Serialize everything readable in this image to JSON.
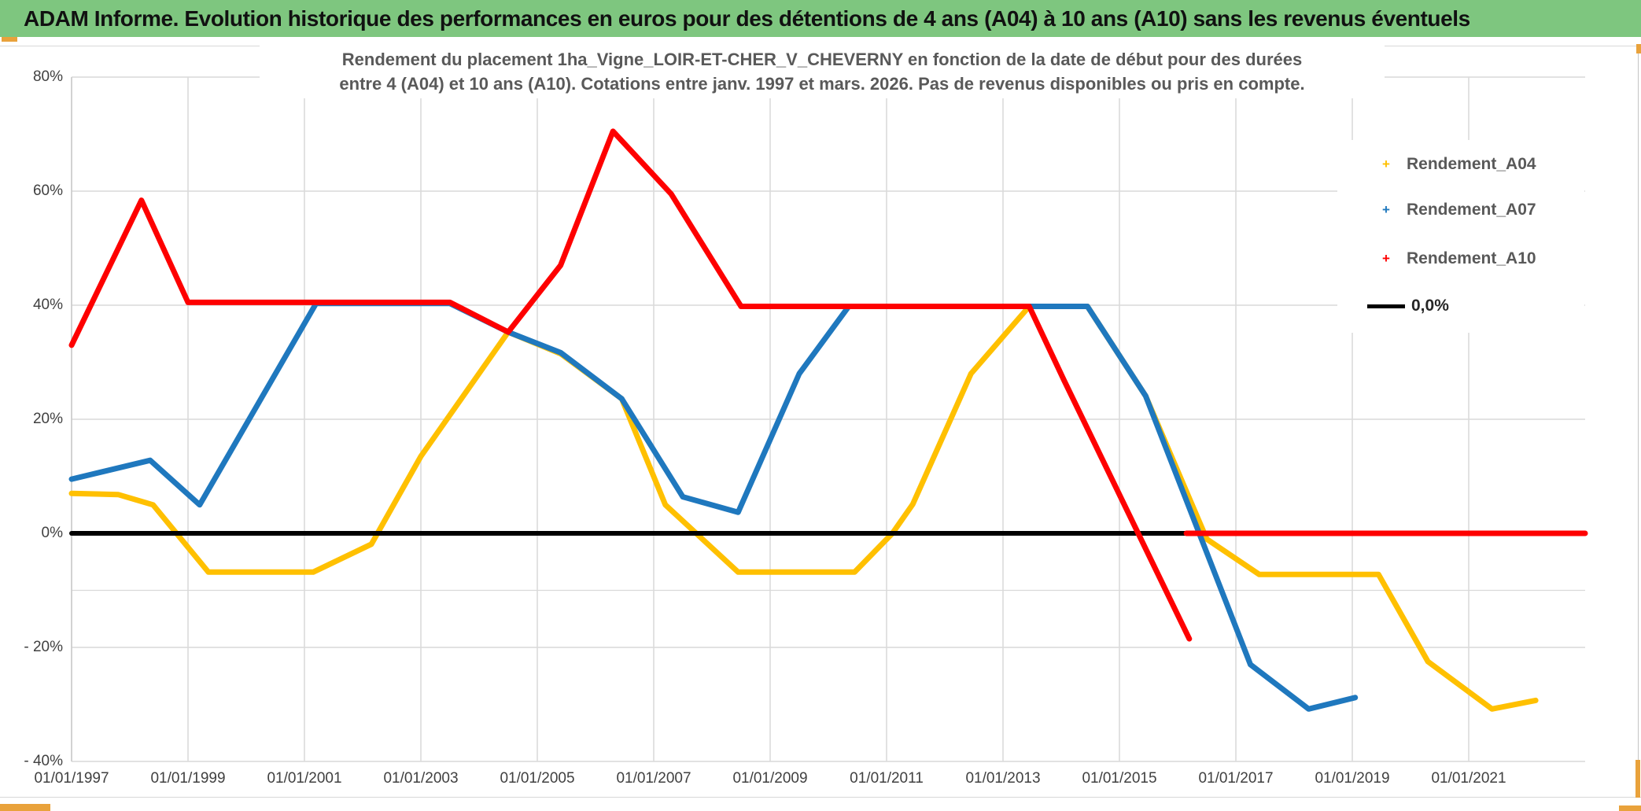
{
  "header": {
    "title": "ADAM Informe. Evolution historique des performances en euros pour des détentions de 4 ans (A04) à 10 ans (A10) sans les revenus éventuels"
  },
  "chart_data": {
    "type": "line",
    "subtitle_line1": "Rendement du placement 1ha_Vigne_LOIR-ET-CHER_V_CHEVERNY en fonction de la date de début pour des durées",
    "subtitle_line2": "entre 4 (A04) et 10 ans (A10). Cotations entre janv. 1997 et mars. 2026. Pas de revenus disponibles ou pris en compte.",
    "x_axis": {
      "tick_years": [
        1997,
        1999,
        2001,
        2003,
        2005,
        2007,
        2009,
        2011,
        2013,
        2015,
        2017,
        2019,
        2021
      ],
      "tick_labels": [
        "01/01/1997",
        "01/01/1999",
        "01/01/2001",
        "01/01/2003",
        "01/01/2005",
        "01/01/2007",
        "01/01/2009",
        "01/01/2011",
        "01/01/2013",
        "01/01/2015",
        "01/01/2017",
        "01/01/2019",
        "01/01/2021"
      ],
      "min_year": 1997,
      "max_year": 2023
    },
    "y_axis": {
      "tick_values": [
        80,
        60,
        40,
        20,
        0,
        -20,
        -40
      ],
      "tick_labels": [
        "80%",
        "60%",
        "40%",
        "20%",
        "0%",
        "- 20%",
        "- 40%"
      ],
      "minor_line_value": -10,
      "range": [
        -40,
        80
      ],
      "unit": "percent"
    },
    "grid": true,
    "legend_position": "right-overlay",
    "colors": {
      "a04": "#FFC000",
      "a07": "#1F78BE",
      "a10": "#FE0000",
      "zero": "#000000",
      "gridline": "#D9D9D9",
      "banner": "#7EC67F",
      "accent_orange": "#E9A23B",
      "text_gray": "#595959"
    },
    "legend": [
      {
        "label": "Rendement_A04",
        "color": "#FFC000",
        "marker": "plus"
      },
      {
        "label": "Rendement_A07",
        "color": "#1F78BE",
        "marker": "plus"
      },
      {
        "label": "Rendement_A10",
        "color": "#FE0000",
        "marker": "plus"
      },
      {
        "label": "0,0%",
        "color": "#000000",
        "marker": "line"
      }
    ],
    "series": [
      {
        "name": "Rendement_A04",
        "color": "#FFC000",
        "width": 7,
        "points": [
          [
            1997.0,
            7.0
          ],
          [
            1997.8,
            6.8
          ],
          [
            1998.4,
            5.0
          ],
          [
            1999.35,
            -6.8
          ],
          [
            2001.15,
            -6.8
          ],
          [
            2002.15,
            -1.9
          ],
          [
            2003.0,
            13.5
          ],
          [
            2004.5,
            35.3
          ],
          [
            2005.4,
            31.5
          ],
          [
            2006.45,
            23.6
          ],
          [
            2007.2,
            5.0
          ],
          [
            2008.45,
            -6.8
          ],
          [
            2010.45,
            -6.8
          ],
          [
            2011.1,
            0.0
          ],
          [
            2011.45,
            5.1
          ],
          [
            2012.45,
            28.0
          ],
          [
            2013.45,
            39.8
          ],
          [
            2014.45,
            39.8
          ],
          [
            2015.45,
            24.1
          ],
          [
            2016.5,
            -1.0
          ],
          [
            2017.4,
            -7.2
          ],
          [
            2019.45,
            -7.2
          ],
          [
            2020.3,
            -22.5
          ],
          [
            2021.4,
            -30.8
          ],
          [
            2022.15,
            -29.3
          ]
        ]
      },
      {
        "name": "Rendement_A07",
        "color": "#1F78BE",
        "width": 7,
        "points": [
          [
            1997.0,
            9.5
          ],
          [
            1998.35,
            12.8
          ],
          [
            1999.2,
            5.0
          ],
          [
            2001.2,
            40.3
          ],
          [
            2003.5,
            40.3
          ],
          [
            2004.5,
            35.3
          ],
          [
            2005.4,
            31.7
          ],
          [
            2006.45,
            23.6
          ],
          [
            2007.5,
            6.4
          ],
          [
            2008.45,
            3.7
          ],
          [
            2009.5,
            28.0
          ],
          [
            2010.35,
            39.8
          ],
          [
            2014.45,
            39.8
          ],
          [
            2015.45,
            24.1
          ],
          [
            2017.25,
            -23.0
          ],
          [
            2018.25,
            -30.8
          ],
          [
            2019.05,
            -28.8
          ]
        ]
      },
      {
        "name": "Ligne_zero",
        "color": "#000000",
        "width": 6,
        "points": [
          [
            1997.0,
            0.0
          ],
          [
            2023.0,
            0.0
          ]
        ]
      },
      {
        "name": "Rendement_A10",
        "color": "#FE0000",
        "width": 7,
        "points": [
          [
            1997.0,
            33.0
          ],
          [
            1998.2,
            58.4
          ],
          [
            1999.0,
            40.5
          ],
          [
            2003.5,
            40.5
          ],
          [
            2004.5,
            35.3
          ],
          [
            2005.4,
            47.0
          ],
          [
            2006.3,
            70.5
          ],
          [
            2007.3,
            59.5
          ],
          [
            2008.5,
            39.8
          ],
          [
            2013.45,
            39.8
          ],
          [
            2014.05,
            26.8
          ],
          [
            2016.2,
            -18.5
          ]
        ]
      },
      {
        "name": "Rendement_A10_zero_apres_2016",
        "color": "#FE0000",
        "width": 7,
        "points": [
          [
            2016.15,
            0.0
          ],
          [
            2023.0,
            0.0
          ]
        ]
      }
    ]
  }
}
